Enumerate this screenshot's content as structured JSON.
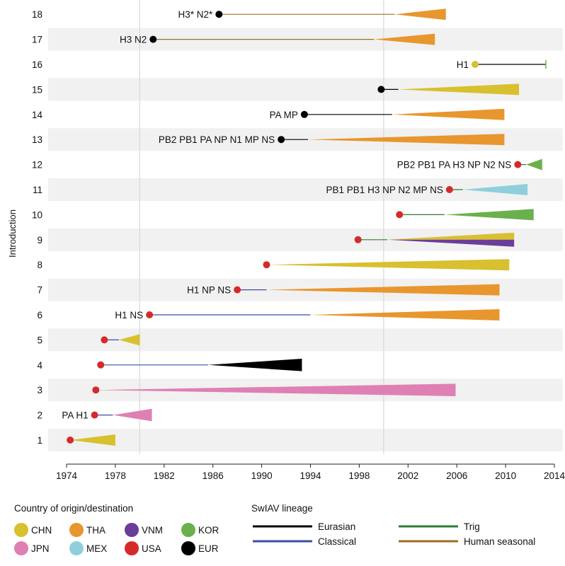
{
  "chart_data": {
    "type": "timeline",
    "ylabel": "Introduction",
    "xlabel": "",
    "xlim": [
      1973,
      2014.5
    ],
    "xticks": [
      1974,
      1978,
      1982,
      1986,
      1990,
      1994,
      1998,
      2002,
      2006,
      2010,
      2014
    ],
    "vlines": [
      1980,
      2000
    ],
    "grid": "alternating row bands",
    "rows": [
      {
        "id": 1,
        "label": "",
        "origin": "USA",
        "start": 1974.3,
        "split": 1974.3,
        "end": 1978.0,
        "color": "CHN",
        "lineage": "Classical",
        "thickness": 0.5
      },
      {
        "id": 2,
        "label": "PA H1",
        "origin": "USA",
        "start": 1976.3,
        "split": 1977.8,
        "end": 1981.0,
        "color": "JPN",
        "lineage": "Classical",
        "thickness": 0.55
      },
      {
        "id": 3,
        "label": "",
        "origin": "USA",
        "start": 1976.4,
        "split": 1976.4,
        "end": 2005.9,
        "color": "JPN",
        "lineage": "Classical",
        "thickness": 0.55
      },
      {
        "id": 4,
        "label": "",
        "origin": "USA",
        "start": 1976.8,
        "split": 1985.6,
        "end": 1993.3,
        "color": "EUR",
        "lineage": "Classical",
        "thickness": 0.55
      },
      {
        "id": 5,
        "label": "",
        "origin": "USA",
        "start": 1977.1,
        "split": 1978.3,
        "end": 1980.0,
        "color": "CHN",
        "lineage": "Classical",
        "thickness": 0.5
      },
      {
        "id": 6,
        "label": "H1 NS",
        "origin": "USA",
        "start": 1980.8,
        "split": 1994.0,
        "end": 2009.5,
        "color": "THA",
        "lineage": "Classical",
        "thickness": 0.5
      },
      {
        "id": 7,
        "label": "H1 NP NS",
        "origin": "USA",
        "start": 1988.0,
        "split": 1990.4,
        "end": 2009.5,
        "color": "THA",
        "lineage": "Classical",
        "thickness": 0.5
      },
      {
        "id": 8,
        "label": "",
        "origin": "USA",
        "start": 1990.4,
        "split": 1990.4,
        "end": 2010.3,
        "color": "CHN",
        "lineage": "Classical",
        "thickness": 0.5
      },
      {
        "id": 9,
        "label": "",
        "origin": "USA",
        "start": 1997.9,
        "split": 2000.3,
        "end": 2010.7,
        "color": "CHN",
        "color2": "VNM",
        "lineage": "Trig",
        "thickness": 0.62
      },
      {
        "id": 10,
        "label": "",
        "origin": "USA",
        "start": 2001.3,
        "split": 2005.0,
        "end": 2012.3,
        "color": "KOR",
        "lineage": "Trig",
        "thickness": 0.5
      },
      {
        "id": 11,
        "label": "PB1 PB1 H3 NP N2 MP NS",
        "origin": "USA",
        "start": 2005.4,
        "split": 2006.5,
        "end": 2011.8,
        "color": "MEX",
        "lineage": "Trig",
        "thickness": 0.5
      },
      {
        "id": 12,
        "label": "PB2 PB1 PA H3 NP N2 NS",
        "origin": "USA",
        "start": 2011.0,
        "split": 2011.7,
        "end": 2013.0,
        "color": "KOR",
        "lineage": "Trig",
        "thickness": 0.5
      },
      {
        "id": 13,
        "label": "PB2 PB1 PA NP N1 MP NS",
        "origin": "EUR",
        "start": 1991.6,
        "split": 1993.8,
        "end": 2009.9,
        "color": "THA",
        "lineage": "Eurasian",
        "thickness": 0.5
      },
      {
        "id": 14,
        "label": "PA MP",
        "origin": "EUR",
        "start": 1993.5,
        "split": 2000.7,
        "end": 2009.9,
        "color": "THA",
        "lineage": "Eurasian",
        "thickness": 0.5
      },
      {
        "id": 15,
        "label": "",
        "origin": "EUR",
        "start": 1999.8,
        "split": 2001.2,
        "end": 2011.1,
        "color": "CHN",
        "lineage": "Eurasian",
        "thickness": 0.5
      },
      {
        "id": 16,
        "label": "H1",
        "origin": "CHN",
        "start": 2007.5,
        "split": 2007.5,
        "end": 2013.3,
        "color": "KOR",
        "lineage": "Eurasian",
        "thickness": 0.0
      },
      {
        "id": 17,
        "label": "H3 N2",
        "origin": "EUR",
        "start": 1981.1,
        "split": 1999.2,
        "end": 2004.2,
        "color": "THA",
        "lineage": "Human seasonal",
        "thickness": 0.5
      },
      {
        "id": 18,
        "label": "H3* N2*",
        "origin": "EUR",
        "start": 1986.5,
        "split": 2000.9,
        "end": 2005.1,
        "color": "THA",
        "lineage": "Human seasonal",
        "thickness": 0.5
      }
    ]
  },
  "colors": {
    "CHN": "#d8c02e",
    "THA": "#e8962e",
    "VNM": "#6a3d9a",
    "KOR": "#6ab04c",
    "JPN": "#df80b4",
    "MEX": "#8fcfdc",
    "USA": "#d62a2a",
    "EUR": "#000000"
  },
  "lineage_colors": {
    "Eurasian": "#000000",
    "Classical": "#3e4ca8",
    "Trig": "#2f7d32",
    "Human seasonal": "#a06b26"
  },
  "legend": {
    "country_title": "Country of origin/destination",
    "countries": [
      {
        "key": "CHN",
        "label": "CHN"
      },
      {
        "key": "THA",
        "label": "THA"
      },
      {
        "key": "VNM",
        "label": "VNM"
      },
      {
        "key": "KOR",
        "label": "KOR"
      },
      {
        "key": "JPN",
        "label": "JPN"
      },
      {
        "key": "MEX",
        "label": "MEX"
      },
      {
        "key": "USA",
        "label": "USA"
      },
      {
        "key": "EUR",
        "label": "EUR"
      }
    ],
    "lineage_title": "SwIAV lineage",
    "lineages": [
      {
        "key": "Eurasian",
        "label": "Eurasian"
      },
      {
        "key": "Trig",
        "label": "Trig"
      },
      {
        "key": "Classical",
        "label": "Classical"
      },
      {
        "key": "Human seasonal",
        "label": "Human seasonal"
      }
    ]
  }
}
